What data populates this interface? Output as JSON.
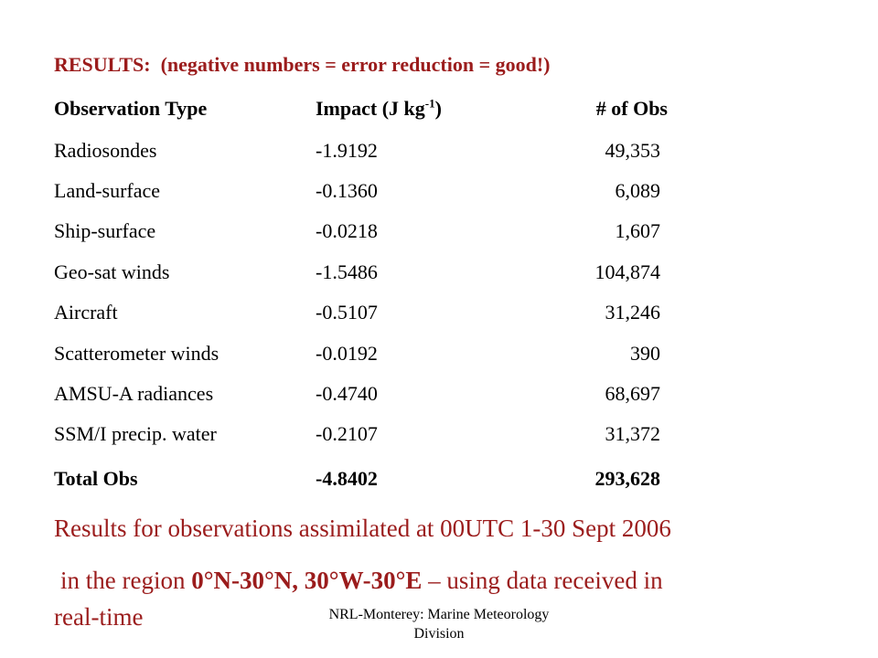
{
  "colors": {
    "accent": "#9b1c1c",
    "text": "#000000"
  },
  "heading": {
    "label": "RESULTS:",
    "note": "(negative numbers = error reduction = good!)"
  },
  "table": {
    "headers": {
      "type": "Observation Type",
      "impact_prefix": "Impact (J kg",
      "impact_sup": "-1",
      "impact_suffix": ")",
      "count": "# of Obs"
    },
    "rows": [
      {
        "type": "Radiosondes",
        "impact": "-1.9192",
        "count": "49,353"
      },
      {
        "type": "Land-surface",
        "impact": "-0.1360",
        "count": "6,089"
      },
      {
        "type": "Ship-surface",
        "impact": "-0.0218",
        "count": "1,607"
      },
      {
        "type": "Geo-sat winds",
        "impact": "-1.5486",
        "count": "104,874"
      },
      {
        "type": "Aircraft",
        "impact": "-0.5107",
        "count": "31,246"
      },
      {
        "type": "Scatterometer winds",
        "impact": "-0.0192",
        "count": "390"
      },
      {
        "type": "AMSU-A radiances",
        "impact": "-0.4740",
        "count": "68,697"
      },
      {
        "type": "SSM/I precip. water",
        "impact": "-0.2107",
        "count": "31,372"
      }
    ],
    "total": {
      "type": "Total Obs",
      "impact": "-4.8402",
      "count": "293,628"
    }
  },
  "summary": {
    "line1": "Results for observations assimilated at 00UTC 1-30 Sept 2006",
    "line2_prefix": "in the region ",
    "line2_region": "0°N-30°N, 30°W-30°E",
    "line2_suffix": " – using data received in",
    "line3": "real-time"
  },
  "footer": {
    "line1": "NRL-Monterey: Marine Meteorology",
    "line2": "Division"
  }
}
